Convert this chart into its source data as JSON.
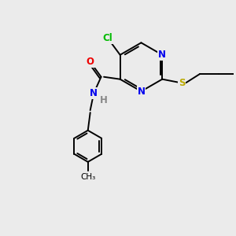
{
  "background_color": "#ebebeb",
  "bond_color": "#000000",
  "atom_colors": {
    "Cl": "#00bb00",
    "N": "#0000ee",
    "O": "#ee0000",
    "S": "#bbaa00",
    "H": "#888888",
    "C": "#000000"
  },
  "font_size": 8.5,
  "line_width": 1.4,
  "figsize": [
    3.0,
    3.0
  ],
  "dpi": 100
}
